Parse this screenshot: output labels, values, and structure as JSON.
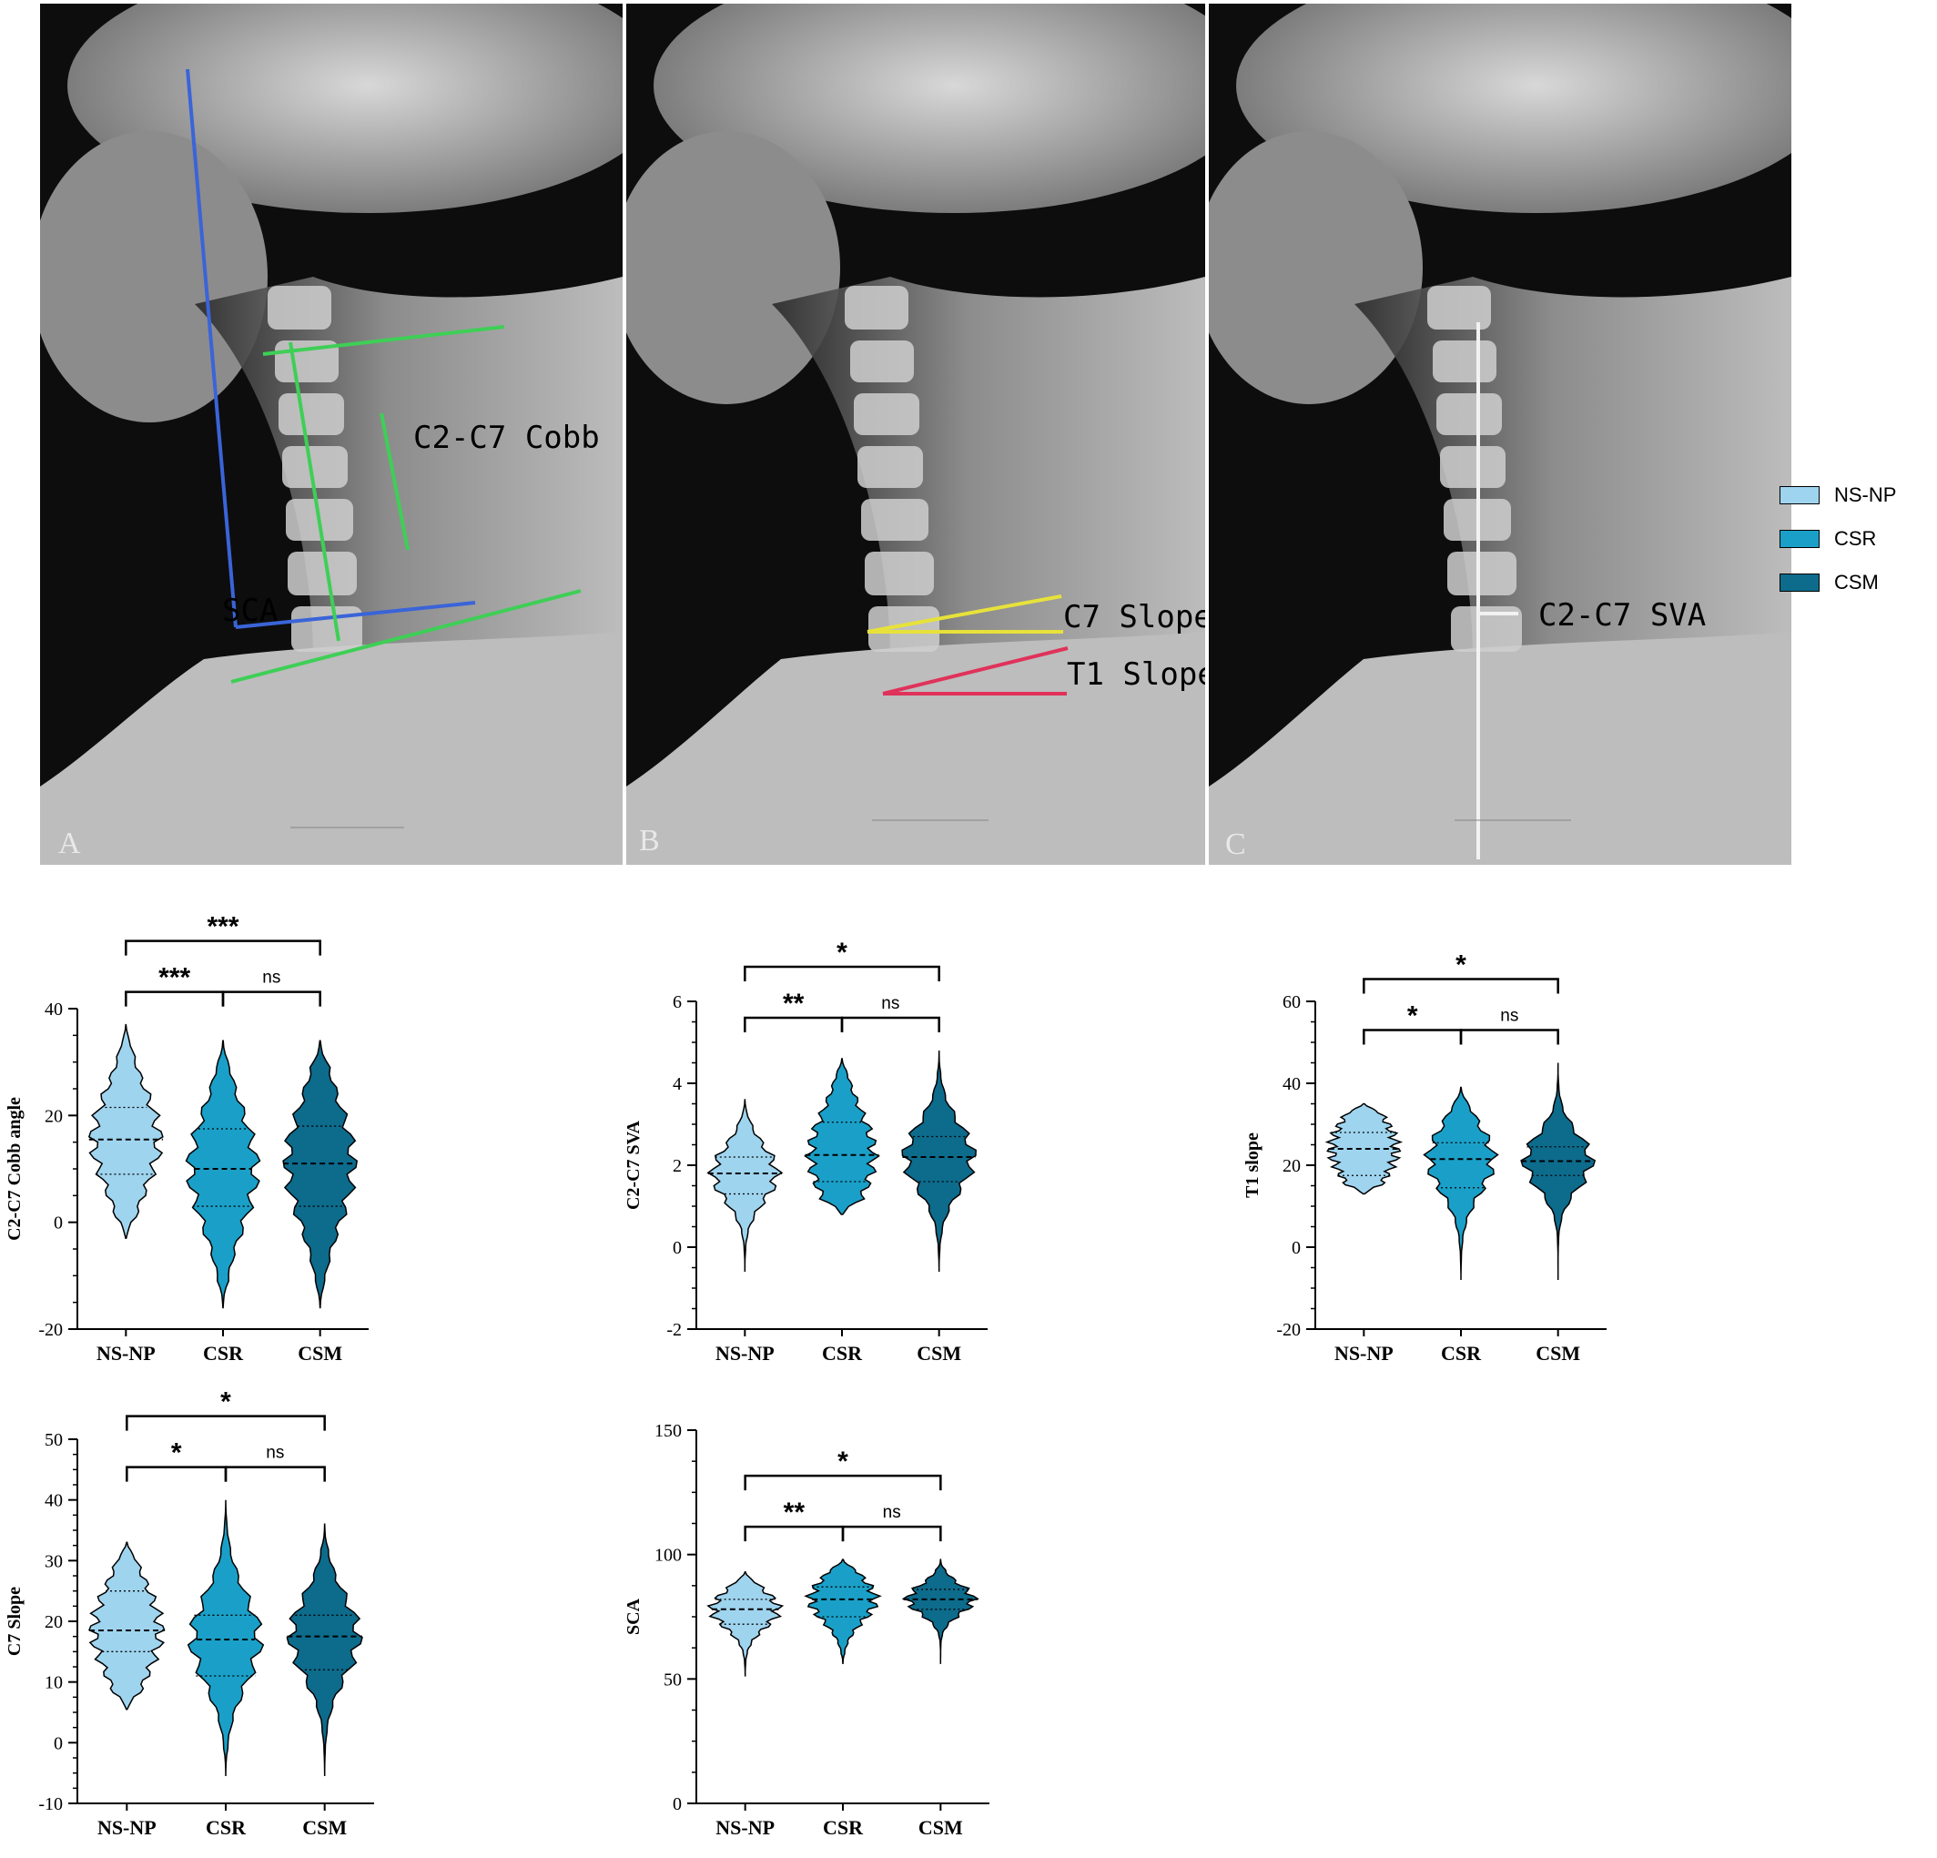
{
  "colors": {
    "NS-NP": "#9fd4ef",
    "CSR": "#1aa0c8",
    "CSM": "#0d6b8c"
  },
  "xrays": [
    {
      "letter": "A",
      "labels": [
        {
          "text": "C2-C7 Cobb",
          "color": "#3ecf56"
        },
        {
          "text": "SCA",
          "color": "#3a64d8"
        }
      ]
    },
    {
      "letter": "B",
      "labels": [
        {
          "text": "C7 Slope",
          "color": "#e7e23a"
        },
        {
          "text": "T1 Slope",
          "color": "#e0325a"
        }
      ]
    },
    {
      "letter": "C",
      "labels": [
        {
          "text": "C2-C7 SVA",
          "color": "#f2f2f2"
        }
      ]
    }
  ],
  "legend": [
    {
      "label": "NS-NP",
      "icon": "swatch-light-blue"
    },
    {
      "label": "CSR",
      "icon": "swatch-medium-blue"
    },
    {
      "label": "CSM",
      "icon": "swatch-dark-blue"
    }
  ],
  "chart_data": [
    {
      "type": "violin",
      "ylabel": "C2-C7 Cobb angle",
      "categories": [
        "NS-NP",
        "CSR",
        "CSM"
      ],
      "ylim": [
        -20,
        40
      ],
      "yticks": [
        -20,
        0,
        20,
        40
      ],
      "series": [
        {
          "name": "NS-NP",
          "min": -3,
          "max": 37,
          "q1": 9,
          "median": 15.5,
          "q3": 21.5
        },
        {
          "name": "CSR",
          "min": -16,
          "max": 34,
          "q1": 3,
          "median": 10,
          "q3": 17.5
        },
        {
          "name": "CSM",
          "min": -16,
          "max": 34,
          "q1": 3,
          "median": 11,
          "q3": 18
        }
      ],
      "comparisons": [
        {
          "pair": [
            "NS-NP",
            "CSM"
          ],
          "label": "***"
        },
        {
          "pair": [
            "NS-NP",
            "CSR"
          ],
          "label": "***"
        },
        {
          "pair": [
            "CSR",
            "CSM"
          ],
          "label": "ns"
        }
      ]
    },
    {
      "type": "violin",
      "ylabel": "C2-C7 SVA",
      "categories": [
        "NS-NP",
        "CSR",
        "CSM"
      ],
      "ylim": [
        -2,
        6
      ],
      "yticks": [
        -2,
        0,
        2,
        4,
        6
      ],
      "series": [
        {
          "name": "NS-NP",
          "min": -0.6,
          "max": 3.6,
          "q1": 1.3,
          "median": 1.8,
          "q3": 2.2
        },
        {
          "name": "CSR",
          "min": 0.8,
          "max": 4.6,
          "q1": 1.6,
          "median": 2.25,
          "q3": 3.05
        },
        {
          "name": "CSM",
          "min": -0.6,
          "max": 4.8,
          "q1": 1.6,
          "median": 2.2,
          "q3": 2.7
        }
      ],
      "comparisons": [
        {
          "pair": [
            "NS-NP",
            "CSM"
          ],
          "label": "*"
        },
        {
          "pair": [
            "NS-NP",
            "CSR"
          ],
          "label": "**"
        },
        {
          "pair": [
            "CSR",
            "CSM"
          ],
          "label": "ns"
        }
      ]
    },
    {
      "type": "violin",
      "ylabel": "T1 slope",
      "categories": [
        "NS-NP",
        "CSR",
        "CSM"
      ],
      "ylim": [
        -20,
        60
      ],
      "yticks": [
        -20,
        0,
        20,
        40,
        60
      ],
      "series": [
        {
          "name": "NS-NP",
          "min": 13,
          "max": 35,
          "q1": 17.5,
          "median": 24,
          "q3": 28
        },
        {
          "name": "CSR",
          "min": -8,
          "max": 39,
          "q1": 14.5,
          "median": 21.5,
          "q3": 25.5
        },
        {
          "name": "CSM",
          "min": -8,
          "max": 45,
          "q1": 17.5,
          "median": 21,
          "q3": 24.5
        }
      ],
      "comparisons": [
        {
          "pair": [
            "NS-NP",
            "CSM"
          ],
          "label": "*"
        },
        {
          "pair": [
            "NS-NP",
            "CSR"
          ],
          "label": "*"
        },
        {
          "pair": [
            "CSR",
            "CSM"
          ],
          "label": "ns"
        }
      ]
    },
    {
      "type": "violin",
      "ylabel": "C7 Slope",
      "categories": [
        "NS-NP",
        "CSR",
        "CSM"
      ],
      "ylim": [
        -10,
        50
      ],
      "yticks": [
        -10,
        0,
        10,
        20,
        30,
        40,
        50
      ],
      "series": [
        {
          "name": "NS-NP",
          "min": 5.5,
          "max": 33,
          "q1": 15,
          "median": 18.5,
          "q3": 25
        },
        {
          "name": "CSR",
          "min": -5.5,
          "max": 40,
          "q1": 11,
          "median": 17,
          "q3": 21
        },
        {
          "name": "CSM",
          "min": -5.5,
          "max": 36,
          "q1": 12,
          "median": 17.5,
          "q3": 21
        }
      ],
      "comparisons": [
        {
          "pair": [
            "NS-NP",
            "CSM"
          ],
          "label": "*"
        },
        {
          "pair": [
            "NS-NP",
            "CSR"
          ],
          "label": "*"
        },
        {
          "pair": [
            "CSR",
            "CSM"
          ],
          "label": "ns"
        }
      ]
    },
    {
      "type": "violin",
      "ylabel": "SCA",
      "categories": [
        "NS-NP",
        "CSR",
        "CSM"
      ],
      "ylim": [
        0,
        150
      ],
      "yticks": [
        0,
        50,
        100,
        150
      ],
      "series": [
        {
          "name": "NS-NP",
          "min": 51,
          "max": 93,
          "q1": 72,
          "median": 78,
          "q3": 82
        },
        {
          "name": "CSR",
          "min": 56,
          "max": 98,
          "q1": 75,
          "median": 82,
          "q3": 87
        },
        {
          "name": "CSM",
          "min": 56,
          "max": 98,
          "q1": 78,
          "median": 82,
          "q3": 86
        }
      ],
      "comparisons": [
        {
          "pair": [
            "NS-NP",
            "CSM"
          ],
          "label": "*"
        },
        {
          "pair": [
            "NS-NP",
            "CSR"
          ],
          "label": "**"
        },
        {
          "pair": [
            "CSR",
            "CSM"
          ],
          "label": "ns"
        }
      ]
    }
  ]
}
